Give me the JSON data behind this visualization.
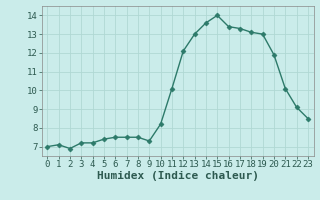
{
  "xlabel": "Humidex (Indice chaleur)",
  "x": [
    0,
    1,
    2,
    3,
    4,
    5,
    6,
    7,
    8,
    9,
    10,
    11,
    12,
    13,
    14,
    15,
    16,
    17,
    18,
    19,
    20,
    21,
    22,
    23
  ],
  "y": [
    7.0,
    7.1,
    6.9,
    7.2,
    7.2,
    7.4,
    7.5,
    7.5,
    7.5,
    7.3,
    8.2,
    10.1,
    12.1,
    13.0,
    13.6,
    14.0,
    13.4,
    13.3,
    13.1,
    13.0,
    11.9,
    10.1,
    9.1,
    8.5
  ],
  "line_color": "#2d7a6a",
  "marker": "D",
  "markersize": 2.5,
  "linewidth": 1.0,
  "bg_color": "#caecea",
  "grid_color": "#b0d8d4",
  "ylim": [
    6.5,
    14.5
  ],
  "xlim": [
    -0.5,
    23.5
  ],
  "yticks": [
    7,
    8,
    9,
    10,
    11,
    12,
    13,
    14
  ],
  "xticks": [
    0,
    1,
    2,
    3,
    4,
    5,
    6,
    7,
    8,
    9,
    10,
    11,
    12,
    13,
    14,
    15,
    16,
    17,
    18,
    19,
    20,
    21,
    22,
    23
  ],
  "tick_label_fontsize": 6.5,
  "xlabel_fontsize": 8,
  "xlabel_fontweight": "bold"
}
